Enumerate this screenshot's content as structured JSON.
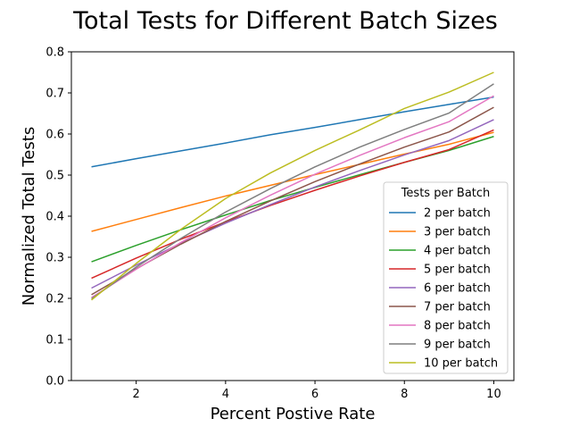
{
  "chart_data": {
    "type": "line",
    "title": "Total Tests for Different Batch Sizes",
    "xlabel": "Percent Postive Rate",
    "ylabel": "Normalized Total Tests",
    "xlim": [
      0.55,
      10.45
    ],
    "ylim": [
      0.0,
      0.8
    ],
    "xticks": [
      2,
      4,
      6,
      8,
      10
    ],
    "yticks": [
      0.0,
      0.1,
      0.2,
      0.3,
      0.4,
      0.5,
      0.6,
      0.7,
      0.8
    ],
    "grid": false,
    "legend": {
      "title": "Tests per Batch",
      "placement": "lower-right"
    },
    "x": [
      1,
      2,
      3,
      4,
      5,
      6,
      7,
      8,
      9,
      10
    ],
    "series": [
      {
        "name": "2 per batch",
        "color": "#1f77b4",
        "values": [
          0.52,
          0.54,
          0.559,
          0.578,
          0.598,
          0.616,
          0.635,
          0.654,
          0.672,
          0.69
        ]
      },
      {
        "name": "3 per batch",
        "color": "#ff7f0e",
        "values": [
          0.363,
          0.392,
          0.421,
          0.449,
          0.475,
          0.501,
          0.526,
          0.551,
          0.575,
          0.604
        ]
      },
      {
        "name": "4 per batch",
        "color": "#2ca02c",
        "values": [
          0.289,
          0.329,
          0.367,
          0.403,
          0.438,
          0.47,
          0.501,
          0.531,
          0.56,
          0.594
        ]
      },
      {
        "name": "5 per batch",
        "color": "#d62728",
        "values": [
          0.249,
          0.298,
          0.344,
          0.386,
          0.426,
          0.463,
          0.498,
          0.531,
          0.562,
          0.61
        ]
      },
      {
        "name": "6 per batch",
        "color": "#9467bd",
        "values": [
          0.225,
          0.281,
          0.334,
          0.383,
          0.428,
          0.471,
          0.511,
          0.549,
          0.584,
          0.635
        ]
      },
      {
        "name": "7 per batch",
        "color": "#8c564b",
        "values": [
          0.209,
          0.272,
          0.332,
          0.387,
          0.437,
          0.484,
          0.527,
          0.568,
          0.605,
          0.665
        ]
      },
      {
        "name": "8 per batch",
        "color": "#e377c2",
        "values": [
          0.202,
          0.271,
          0.336,
          0.396,
          0.451,
          0.502,
          0.548,
          0.591,
          0.63,
          0.693
        ]
      },
      {
        "name": "9 per batch",
        "color": "#7f7f7f",
        "values": [
          0.199,
          0.276,
          0.346,
          0.41,
          0.467,
          0.52,
          0.568,
          0.611,
          0.651,
          0.722
        ]
      },
      {
        "name": "10 per batch",
        "color": "#bcbd22",
        "values": [
          0.196,
          0.285,
          0.368,
          0.443,
          0.505,
          0.56,
          0.61,
          0.662,
          0.702,
          0.75
        ]
      }
    ]
  }
}
